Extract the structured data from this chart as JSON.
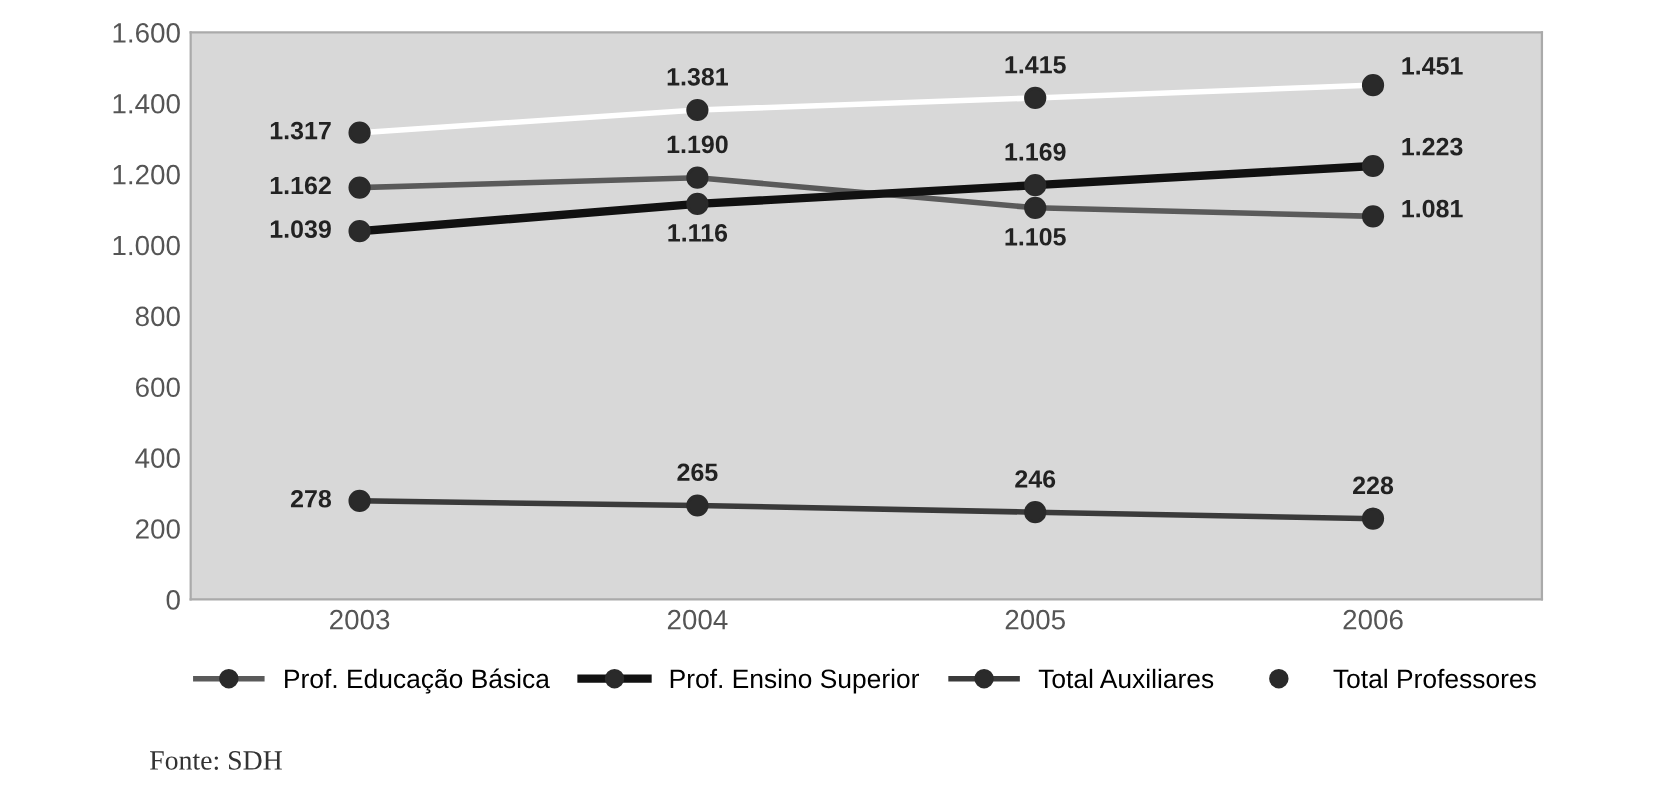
{
  "chart_data": {
    "type": "line",
    "categories": [
      "2003",
      "2004",
      "2005",
      "2006"
    ],
    "series": [
      {
        "name": "Prof. Educação Básica",
        "color": "#5a5a5a",
        "values": [
          1162,
          1190,
          1105,
          1081
        ],
        "value_labels": [
          "1.162",
          "1.190",
          "1.105",
          "1.081"
        ]
      },
      {
        "name": "Prof. Ensino Superior",
        "color": "#111111",
        "values": [
          1039,
          1116,
          1169,
          1223
        ],
        "value_labels": [
          "1.039",
          "1.116",
          "1.169",
          "1.223"
        ]
      },
      {
        "name": "Total Auxiliares",
        "color": "#3a3a3a",
        "values": [
          278,
          265,
          246,
          228
        ],
        "value_labels": [
          "278",
          "265",
          "246",
          "228"
        ]
      },
      {
        "name": "Total Professores",
        "color": "#ffffff",
        "values": [
          1317,
          1381,
          1415,
          1451
        ],
        "value_labels": [
          "1.317",
          "1.381",
          "1.415",
          "1.451"
        ]
      }
    ],
    "ylim": [
      0,
      1600
    ],
    "yticks": [
      0,
      200,
      400,
      600,
      800,
      {
        "value": 1000,
        "label": "1.000"
      },
      {
        "value": 1200,
        "label": "1.200"
      },
      {
        "value": 1400,
        "label": "1.400"
      },
      {
        "value": 1600,
        "label": "1.600"
      }
    ],
    "marker": "circle",
    "legend": "bottom",
    "grid": false,
    "annotations": [
      "Fonte: SDH"
    ]
  }
}
